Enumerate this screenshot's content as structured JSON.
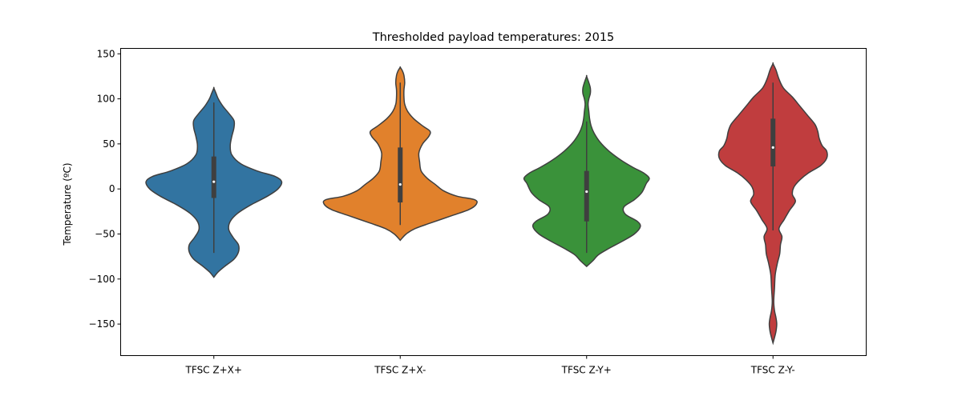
{
  "chart_data": {
    "type": "violin",
    "title": "Thresholded payload temperatures: 2015",
    "xlabel": "",
    "ylabel": "Temperature (ºC)",
    "ylim": [
      -185,
      156
    ],
    "yticks": [
      150,
      100,
      50,
      0,
      -50,
      -100,
      -150
    ],
    "categories": [
      "TFSC Z+X+",
      "TFSC Z+X-",
      "TFSC Z-Y+",
      "TFSC Z-Y-"
    ],
    "colors": [
      "#3274a1",
      "#e1812c",
      "#3a923a",
      "#c03d3e"
    ],
    "series": [
      {
        "category": "TFSC Z+X+",
        "color": "#3274a1",
        "min": -71,
        "q1": -10,
        "median": 8,
        "q3": 36,
        "max": 96,
        "density": [
          [
            -98,
            0
          ],
          [
            -92,
            6
          ],
          [
            -85,
            16
          ],
          [
            -78,
            27
          ],
          [
            -70,
            33
          ],
          [
            -62,
            33
          ],
          [
            -54,
            26
          ],
          [
            -45,
            20
          ],
          [
            -36,
            22
          ],
          [
            -27,
            32
          ],
          [
            -18,
            49
          ],
          [
            -8,
            72
          ],
          [
            0,
            86
          ],
          [
            8,
            91
          ],
          [
            14,
            82
          ],
          [
            20,
            58
          ],
          [
            28,
            36
          ],
          [
            38,
            24
          ],
          [
            48,
            22
          ],
          [
            58,
            24
          ],
          [
            68,
            27
          ],
          [
            76,
            27
          ],
          [
            84,
            20
          ],
          [
            92,
            12
          ],
          [
            100,
            6
          ],
          [
            106,
            3
          ],
          [
            112,
            0
          ]
        ]
      },
      {
        "category": "TFSC Z+X-",
        "color": "#e1812c",
        "min": -40,
        "q1": -15,
        "median": 5,
        "q3": 46,
        "max": 118,
        "density": [
          [
            -57,
            0
          ],
          [
            -50,
            8
          ],
          [
            -44,
            20
          ],
          [
            -38,
            40
          ],
          [
            -30,
            68
          ],
          [
            -23,
            92
          ],
          [
            -17,
            102
          ],
          [
            -12,
            100
          ],
          [
            -8,
            76
          ],
          [
            -2,
            58
          ],
          [
            5,
            47
          ],
          [
            12,
            36
          ],
          [
            20,
            28
          ],
          [
            30,
            26
          ],
          [
            40,
            25
          ],
          [
            50,
            30
          ],
          [
            58,
            38
          ],
          [
            64,
            40
          ],
          [
            70,
            30
          ],
          [
            78,
            18
          ],
          [
            86,
            10
          ],
          [
            94,
            6
          ],
          [
            102,
            5
          ],
          [
            110,
            5
          ],
          [
            118,
            6
          ],
          [
            126,
            5
          ],
          [
            131,
            3
          ],
          [
            135,
            0
          ]
        ]
      },
      {
        "category": "TFSC Z-Y+",
        "color": "#3a923a",
        "min": -71,
        "q1": -36,
        "median": -3,
        "q3": 20,
        "max": 75,
        "density": [
          [
            -86,
            0
          ],
          [
            -80,
            8
          ],
          [
            -73,
            16
          ],
          [
            -66,
            30
          ],
          [
            -58,
            48
          ],
          [
            -50,
            64
          ],
          [
            -42,
            72
          ],
          [
            -36,
            68
          ],
          [
            -28,
            52
          ],
          [
            -20,
            50
          ],
          [
            -12,
            64
          ],
          [
            -4,
            74
          ],
          [
            6,
            80
          ],
          [
            12,
            84
          ],
          [
            18,
            76
          ],
          [
            24,
            62
          ],
          [
            32,
            46
          ],
          [
            42,
            30
          ],
          [
            52,
            18
          ],
          [
            62,
            10
          ],
          [
            70,
            6
          ],
          [
            78,
            4
          ],
          [
            86,
            3
          ],
          [
            94,
            2
          ],
          [
            100,
            3
          ],
          [
            106,
            5
          ],
          [
            112,
            5
          ],
          [
            118,
            3
          ],
          [
            125,
            0
          ]
        ]
      },
      {
        "category": "TFSC Z-Y-",
        "color": "#c03d3e",
        "min": -46,
        "q1": 25,
        "median": 46,
        "q3": 78,
        "max": 118,
        "density": [
          [
            -171,
            0
          ],
          [
            -165,
            2
          ],
          [
            -158,
            4
          ],
          [
            -150,
            5
          ],
          [
            -143,
            4
          ],
          [
            -135,
            2
          ],
          [
            -125,
            1
          ],
          [
            -110,
            2
          ],
          [
            -95,
            3
          ],
          [
            -82,
            6
          ],
          [
            -72,
            9
          ],
          [
            -62,
            10
          ],
          [
            -53,
            12
          ],
          [
            -44,
            8
          ],
          [
            -34,
            15
          ],
          [
            -24,
            22
          ],
          [
            -14,
            30
          ],
          [
            -6,
            26
          ],
          [
            2,
            28
          ],
          [
            10,
            36
          ],
          [
            18,
            48
          ],
          [
            26,
            64
          ],
          [
            34,
            72
          ],
          [
            42,
            72
          ],
          [
            48,
            66
          ],
          [
            56,
            62
          ],
          [
            64,
            60
          ],
          [
            72,
            56
          ],
          [
            82,
            46
          ],
          [
            92,
            36
          ],
          [
            102,
            26
          ],
          [
            112,
            14
          ],
          [
            122,
            8
          ],
          [
            132,
            4
          ],
          [
            139,
            0
          ]
        ]
      }
    ]
  }
}
